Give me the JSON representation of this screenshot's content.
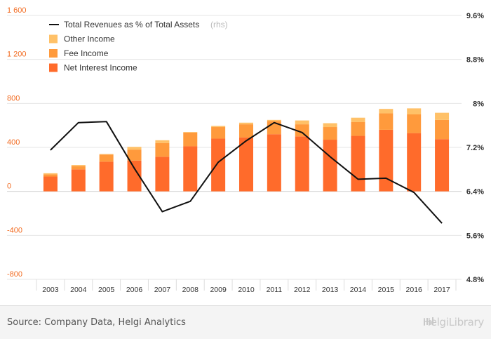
{
  "chart_data": {
    "type": "bar",
    "categories": [
      "2003",
      "2004",
      "2005",
      "2006",
      "2007",
      "2008",
      "2009",
      "2010",
      "2011",
      "2012",
      "2013",
      "2014",
      "2015",
      "2016",
      "2017"
    ],
    "series": [
      {
        "name": "Net Interest Income",
        "axis": "left",
        "color": "#ff6b2b",
        "values": [
          135,
          200,
          270,
          280,
          315,
          410,
          480,
          490,
          520,
          500,
          470,
          505,
          560,
          530,
          475
        ]
      },
      {
        "name": "Fee Income",
        "axis": "left",
        "color": "#ff9a3c",
        "values": [
          20,
          30,
          65,
          100,
          125,
          125,
          105,
          120,
          120,
          110,
          115,
          125,
          150,
          170,
          175
        ]
      },
      {
        "name": "Other Income",
        "axis": "left",
        "color": "#ffc168",
        "values": [
          10,
          10,
          5,
          25,
          25,
          5,
          10,
          15,
          10,
          35,
          35,
          40,
          40,
          55,
          65
        ]
      },
      {
        "name": "Total Revenues as % of Total Assets",
        "axis": "right",
        "type": "line",
        "color": "#111111",
        "values": [
          7.15,
          7.65,
          7.67,
          6.82,
          6.03,
          6.22,
          6.93,
          7.32,
          7.65,
          7.47,
          7.03,
          6.62,
          6.64,
          6.38,
          5.82
        ]
      }
    ],
    "legend": [
      {
        "label": "Total Revenues as % of Total Assets",
        "suffix": "(rhs)",
        "kind": "line",
        "color": "#111111"
      },
      {
        "label": "Other Income",
        "kind": "box",
        "color": "#ffc168"
      },
      {
        "label": "Fee Income",
        "kind": "box",
        "color": "#ff9a3c"
      },
      {
        "label": "Net Interest Income",
        "kind": "box",
        "color": "#ff6b2b"
      }
    ],
    "legend_position": "top-left",
    "ylim_left": [
      -800,
      1600
    ],
    "yticks_left": [
      "1 600",
      "1 200",
      "800",
      "400",
      "0",
      "-400",
      "-800"
    ],
    "ylim_right": [
      4.8,
      9.6
    ],
    "yticks_right": [
      "9.6%",
      "8.8%",
      "8%",
      "7.2%",
      "6.4%",
      "5.6%",
      "4.8%"
    ],
    "grid": true,
    "title": "",
    "xlabel": "",
    "ylabel": ""
  },
  "footer": {
    "source": "Source: Company Data, Helgi Analytics",
    "brand": "HelgiLibrary"
  }
}
